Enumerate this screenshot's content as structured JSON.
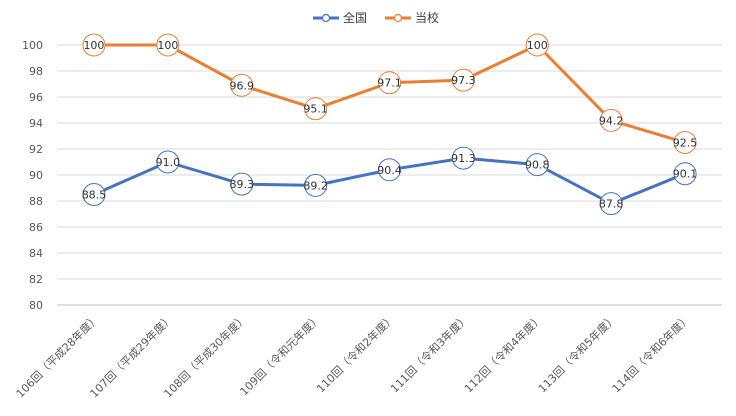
{
  "chart_data": {
    "type": "line",
    "categories": [
      "106回（平成28年度）",
      "107回（平成29年度）",
      "108回（平成30年度）",
      "109回（令和元年度）",
      "110回（令和2年度）",
      "111回（令和3年度）",
      "112回（令和4年度）",
      "113回（令和5年度）",
      "114回（令和6年度）"
    ],
    "series": [
      {
        "name": "全国",
        "color": "#4472C4",
        "values": [
          88.5,
          91.0,
          89.3,
          89.2,
          90.4,
          91.3,
          90.8,
          87.8,
          90.1
        ],
        "labels": [
          "88.5",
          "91.0",
          "89.3",
          "89.2",
          "90.4",
          "91.3",
          "90.8",
          "87.8",
          "90.1"
        ]
      },
      {
        "name": "当校",
        "color": "#ED7D31",
        "values": [
          100,
          100,
          96.9,
          95.1,
          97.1,
          97.3,
          100,
          94.2,
          92.5
        ],
        "labels": [
          "100",
          "100",
          "96.9",
          "95.1",
          "97.1",
          "97.3",
          "100",
          "94.2",
          "92.5"
        ]
      }
    ],
    "ylim": [
      80,
      100
    ],
    "yticks": [
      "80",
      "82",
      "84",
      "86",
      "88",
      "90",
      "92",
      "94",
      "96",
      "98",
      "100"
    ],
    "grid": true,
    "legend_position": "top-center"
  }
}
